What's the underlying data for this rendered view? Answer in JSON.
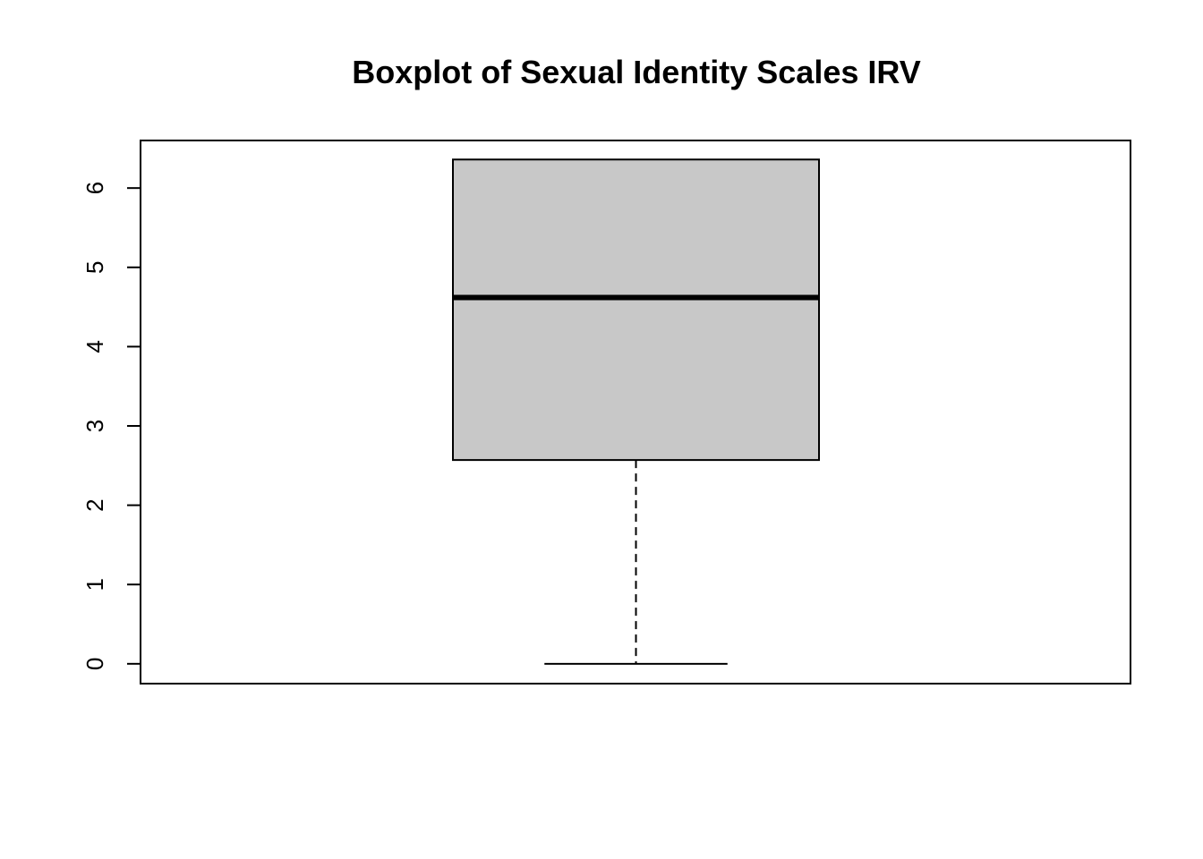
{
  "chart_data": {
    "type": "boxplot",
    "title": "Boxplot of Sexual Identity Scales IRV",
    "xlabel": "",
    "ylabel": "",
    "ylim": [
      -0.25,
      6.6
    ],
    "y_ticks": [
      0,
      1,
      2,
      3,
      4,
      5,
      6
    ],
    "y_tick_labels": [
      "0",
      "1",
      "2",
      "3",
      "4",
      "5",
      "6"
    ],
    "grid": false,
    "series": [
      {
        "min": 0,
        "q1": 2.57,
        "median": 4.62,
        "q3": 6.36,
        "max": 6.36
      }
    ],
    "colors": {
      "box_fill": "#c8c8c8",
      "stroke": "#000000",
      "background": "#ffffff"
    }
  }
}
